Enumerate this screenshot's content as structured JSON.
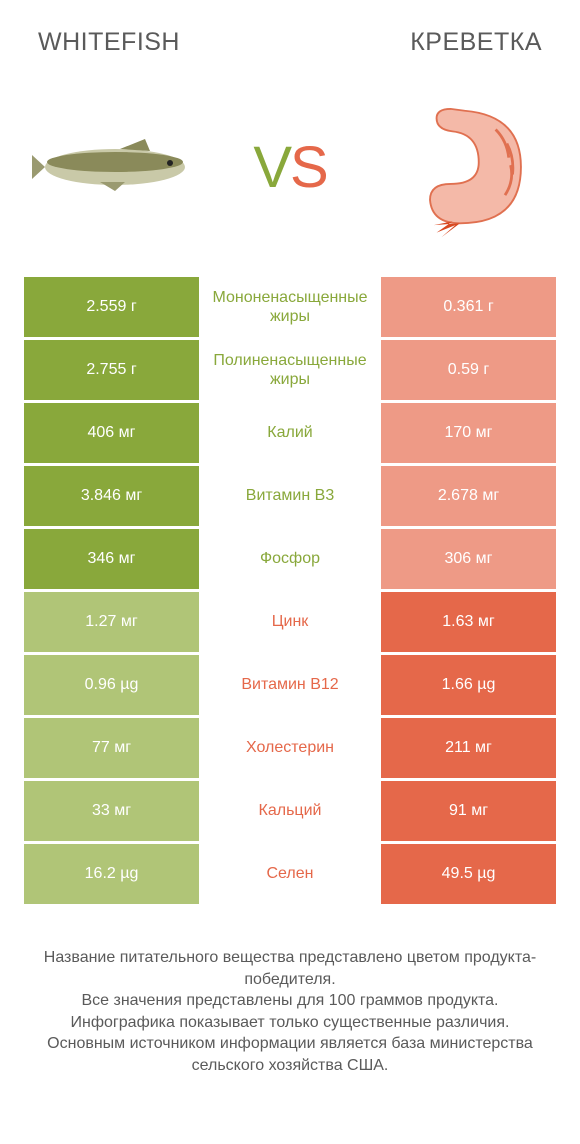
{
  "colors": {
    "left": "#89a83b",
    "right": "#e5684a",
    "leftDim": "#b0c577",
    "rightDim": "#ee9a86",
    "text": "#5a5a5a"
  },
  "titles": {
    "left": "WHITEFISH",
    "right": "КРЕВЕТКА"
  },
  "vs": {
    "v": "V",
    "s": "S"
  },
  "rows": [
    {
      "left": "2.559 г",
      "mid": "Мононенасыщенные жиры",
      "right": "0.361 г",
      "winner": "left"
    },
    {
      "left": "2.755 г",
      "mid": "Полиненасыщенные жиры",
      "right": "0.59 г",
      "winner": "left"
    },
    {
      "left": "406 мг",
      "mid": "Калий",
      "right": "170 мг",
      "winner": "left"
    },
    {
      "left": "3.846 мг",
      "mid": "Витамин B3",
      "right": "2.678 мг",
      "winner": "left"
    },
    {
      "left": "346 мг",
      "mid": "Фосфор",
      "right": "306 мг",
      "winner": "left"
    },
    {
      "left": "1.27 мг",
      "mid": "Цинк",
      "right": "1.63 мг",
      "winner": "right"
    },
    {
      "left": "0.96 µg",
      "mid": "Витамин B12",
      "right": "1.66 µg",
      "winner": "right"
    },
    {
      "left": "77 мг",
      "mid": "Холестерин",
      "right": "211 мг",
      "winner": "right"
    },
    {
      "left": "33 мг",
      "mid": "Кальций",
      "right": "91 мг",
      "winner": "right"
    },
    {
      "left": "16.2 µg",
      "mid": "Селен",
      "right": "49.5 µg",
      "winner": "right"
    }
  ],
  "footer": "Название питательного вещества представлено цветом продукта-победителя.\nВсе значения представлены для 100 граммов продукта.\nИнфографика показывает только существенные различия.\nОсновным источником информации является база министерства сельского хозяйства США."
}
